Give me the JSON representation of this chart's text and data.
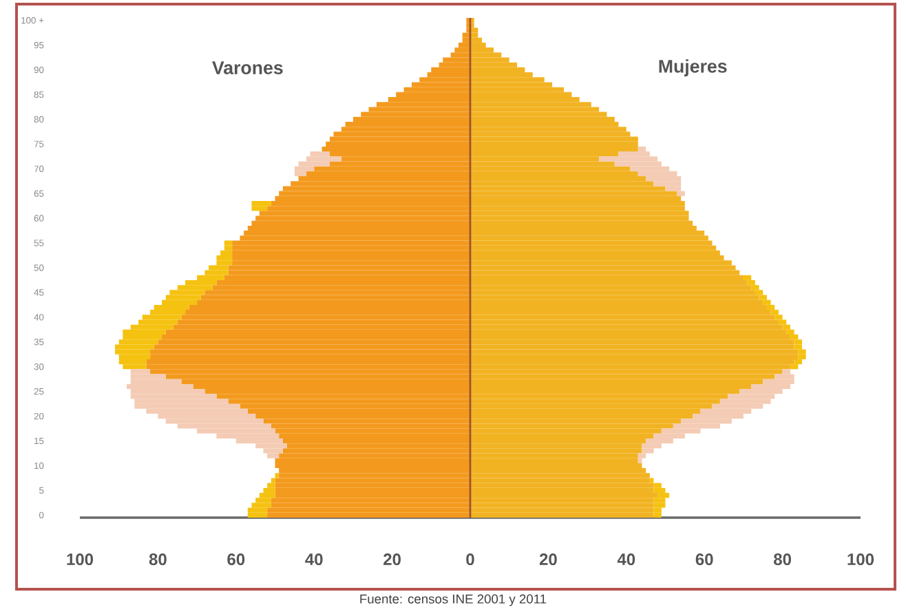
{
  "chart_data": {
    "type": "bar",
    "orientation": "horizontal",
    "stacked": true,
    "categories": [
      "100 +",
      null,
      null,
      null,
      null,
      "95",
      null,
      null,
      null,
      null,
      "90",
      null,
      null,
      null,
      null,
      "85",
      null,
      null,
      null,
      null,
      "80",
      null,
      null,
      null,
      null,
      "75",
      null,
      null,
      null,
      null,
      "70",
      null,
      null,
      null,
      null,
      "65",
      null,
      null,
      null,
      null,
      "60",
      null,
      null,
      null,
      null,
      "55",
      null,
      null,
      null,
      null,
      "50",
      null,
      null,
      null,
      null,
      "45",
      null,
      null,
      null,
      null,
      "40",
      null,
      null,
      null,
      null,
      "35",
      null,
      null,
      null,
      null,
      "30",
      null,
      null,
      null,
      null,
      "25",
      null,
      null,
      null,
      null,
      "20",
      null,
      null,
      null,
      null,
      "15",
      null,
      null,
      null,
      null,
      "10",
      null,
      null,
      null,
      null,
      "5",
      null,
      null,
      null,
      null,
      "0"
    ],
    "series": [
      {
        "color": "#f39a1e",
        "values": [
          -1,
          -1,
          -1,
          -2,
          -2,
          -3,
          -4,
          -5,
          -7,
          -8,
          -10,
          -11,
          -13,
          -15,
          -17,
          -19,
          -21,
          -24,
          -26,
          -28,
          -30,
          -32,
          -33,
          -35,
          -36,
          -37,
          -38,
          -36,
          -33,
          -36,
          -40,
          -42,
          -44,
          -46,
          -48,
          -49,
          -50,
          -51,
          -52,
          -54,
          -55,
          -56,
          -57,
          -58,
          -59,
          -61,
          -61,
          -61,
          -61,
          -61,
          -62,
          -62,
          -63,
          -65,
          -66,
          -68,
          -69,
          -70,
          -72,
          -73,
          -74,
          -75,
          -76,
          -78,
          -79,
          -80,
          -81,
          -82,
          -82,
          -83,
          -83,
          -82,
          -78,
          -74,
          -71,
          -68,
          -65,
          -62,
          -59,
          -57,
          -55,
          -53,
          -51,
          -50,
          -49,
          -48,
          -47,
          -48,
          -49,
          -50,
          -50,
          -49,
          -49,
          -50,
          -50,
          -50,
          -50,
          -51,
          -51,
          -52,
          -52
        ]
      },
      {
        "colors": [
          null,
          null,
          null,
          null,
          null,
          null,
          null,
          null,
          null,
          null,
          null,
          null,
          null,
          null,
          null,
          null,
          null,
          null,
          null,
          null,
          null,
          null,
          null,
          null,
          null,
          null,
          null,
          "#f4cbb4",
          "#f4cbb4",
          "#f4cbb4",
          "#f4cbb4",
          "#f4cbb4",
          null,
          null,
          null,
          null,
          null,
          "#f5c211",
          "#f5c211",
          null,
          null,
          null,
          null,
          null,
          null,
          "#f5c211",
          "#f5c211",
          "#f5c211",
          "#f5c211",
          "#f5c211",
          "#f5c211",
          "#f5c211",
          "#f5c211",
          "#f5c211",
          "#f5c211",
          "#f5c211",
          "#f5c211",
          "#f5c211",
          "#f5c211",
          "#f5c211",
          "#f5c211",
          "#f5c211",
          "#f5c211",
          "#f5c211",
          "#f5c211",
          "#f5c211",
          "#f5c211",
          "#f5c211",
          "#f5c211",
          "#f5c211",
          "#f5c211",
          "#f4cbb4",
          "#f4cbb4",
          "#f4cbb4",
          "#f4cbb4",
          "#f4cbb4",
          "#f4cbb4",
          "#f4cbb4",
          "#f4cbb4",
          "#f4cbb4",
          "#f4cbb4",
          "#f4cbb4",
          "#f4cbb4",
          "#f4cbb4",
          "#f4cbb4",
          "#f4cbb4",
          "#f4cbb4",
          "#f4cbb4",
          "#f4cbb4",
          null,
          null,
          null,
          "#f5c211",
          "#f5c211",
          "#f5c211",
          "#f5c211",
          "#f5c211",
          "#f5c211",
          "#f5c211",
          "#f5c211",
          "#f5c211"
        ],
        "values": [
          null,
          null,
          null,
          null,
          null,
          null,
          null,
          null,
          null,
          null,
          null,
          null,
          null,
          null,
          null,
          null,
          null,
          null,
          null,
          null,
          null,
          null,
          null,
          null,
          null,
          null,
          null,
          -5,
          -9,
          -8,
          -5,
          -3,
          null,
          null,
          null,
          null,
          null,
          -5,
          -4,
          null,
          null,
          null,
          null,
          null,
          null,
          -2,
          -2,
          -3,
          -4,
          -4,
          -5,
          -6,
          -7,
          -8,
          -9,
          -9,
          -9,
          -9,
          -9,
          -9,
          -10,
          -10,
          -11,
          -11,
          -10,
          -10,
          -10,
          -9,
          -8,
          -7,
          -6,
          -5,
          -9,
          -13,
          -17,
          -19,
          -22,
          -24,
          -27,
          -26,
          -25,
          -25,
          -24,
          -20,
          -16,
          -12,
          -8,
          -5,
          -3,
          null,
          null,
          null,
          -1,
          -1,
          -2,
          -3,
          -4,
          -4,
          -5,
          -5,
          -5
        ]
      },
      {
        "color": "#f2b323",
        "values": [
          1,
          1,
          2,
          2,
          3,
          4,
          6,
          8,
          10,
          12,
          14,
          16,
          19,
          21,
          24,
          26,
          28,
          31,
          33,
          35,
          37,
          38,
          40,
          41,
          43,
          43,
          43,
          38,
          33,
          37,
          41,
          43,
          45,
          47,
          50,
          53,
          54,
          55,
          55,
          56,
          56,
          57,
          58,
          60,
          61,
          62,
          63,
          64,
          65,
          67,
          68,
          69,
          70,
          71,
          72,
          73,
          74,
          75,
          76,
          77,
          78,
          79,
          80,
          81,
          82,
          83,
          83,
          84,
          84,
          83,
          82,
          80,
          78,
          75,
          72,
          69,
          66,
          64,
          62,
          59,
          57,
          54,
          52,
          49,
          47,
          45,
          44,
          44,
          43,
          43,
          44,
          45,
          46,
          46,
          47,
          47,
          48,
          47,
          47,
          47,
          47
        ]
      },
      {
        "colors": [
          null,
          null,
          null,
          null,
          null,
          null,
          null,
          null,
          null,
          null,
          null,
          null,
          null,
          null,
          null,
          null,
          null,
          null,
          null,
          null,
          null,
          null,
          null,
          null,
          null,
          null,
          "#f4cbb4",
          "#f4cbb4",
          "#f4cbb4",
          "#f4cbb4",
          "#f4cbb4",
          "#f4cbb4",
          "#f4cbb4",
          "#f4cbb4",
          "#f4cbb4",
          "#f4cbb4",
          null,
          null,
          null,
          null,
          null,
          null,
          null,
          null,
          null,
          null,
          null,
          null,
          null,
          null,
          null,
          null,
          "#f5c211",
          "#f5c211",
          "#f5c211",
          "#f5c211",
          "#f5c211",
          "#f5c211",
          "#f5c211",
          "#f5c211",
          "#f5c211",
          "#f5c211",
          "#f5c211",
          "#f5c211",
          "#f5c211",
          "#f5c211",
          "#f5c211",
          "#f5c211",
          "#f5c211",
          "#f5c211",
          "#f5c211",
          "#f4cbb4",
          "#f4cbb4",
          "#f4cbb4",
          "#f4cbb4",
          "#f4cbb4",
          "#f4cbb4",
          "#f4cbb4",
          "#f4cbb4",
          "#f4cbb4",
          "#f4cbb4",
          "#f4cbb4",
          "#f4cbb4",
          "#f4cbb4",
          "#f4cbb4",
          "#f4cbb4",
          "#f4cbb4",
          "#f4cbb4",
          "#f4cbb4",
          "#f4cbb4",
          null,
          null,
          null,
          "#f5c211",
          "#f5c211",
          "#f5c211",
          "#f5c211",
          "#f5c211",
          "#f5c211",
          "#f5c211",
          "#f5c211"
        ],
        "values": [
          null,
          null,
          null,
          null,
          null,
          null,
          null,
          null,
          null,
          null,
          null,
          null,
          null,
          null,
          null,
          null,
          null,
          null,
          null,
          null,
          null,
          null,
          null,
          null,
          null,
          null,
          2,
          8,
          15,
          12,
          10,
          10,
          9,
          7,
          4,
          2,
          null,
          null,
          null,
          null,
          null,
          null,
          null,
          null,
          null,
          null,
          null,
          null,
          null,
          null,
          null,
          null,
          2,
          2,
          2,
          2,
          2,
          2,
          2,
          2,
          2,
          2,
          2,
          2,
          2,
          2,
          2,
          2,
          2,
          2,
          2,
          2,
          5,
          8,
          10,
          11,
          12,
          13,
          13,
          13,
          13,
          13,
          12,
          10,
          8,
          7,
          5,
          3,
          2,
          1,
          null,
          null,
          null,
          1,
          2,
          3,
          3,
          3,
          3,
          2,
          2
        ]
      }
    ],
    "xlim": [
      -100,
      100
    ],
    "xticks": [
      {
        "value": -100,
        "label": "100"
      },
      {
        "value": -80,
        "label": "80"
      },
      {
        "value": -60,
        "label": "60"
      },
      {
        "value": -40,
        "label": "40"
      },
      {
        "value": -20,
        "label": "20"
      },
      0,
      20,
      40,
      60,
      80,
      100
    ],
    "ref_lines": [
      {
        "axis": "x",
        "value": 0,
        "color": "#a0522d"
      }
    ],
    "annotations": [
      "Varones",
      "Mujeres",
      "Fuente: censos INE 2001 y 2011"
    ]
  }
}
